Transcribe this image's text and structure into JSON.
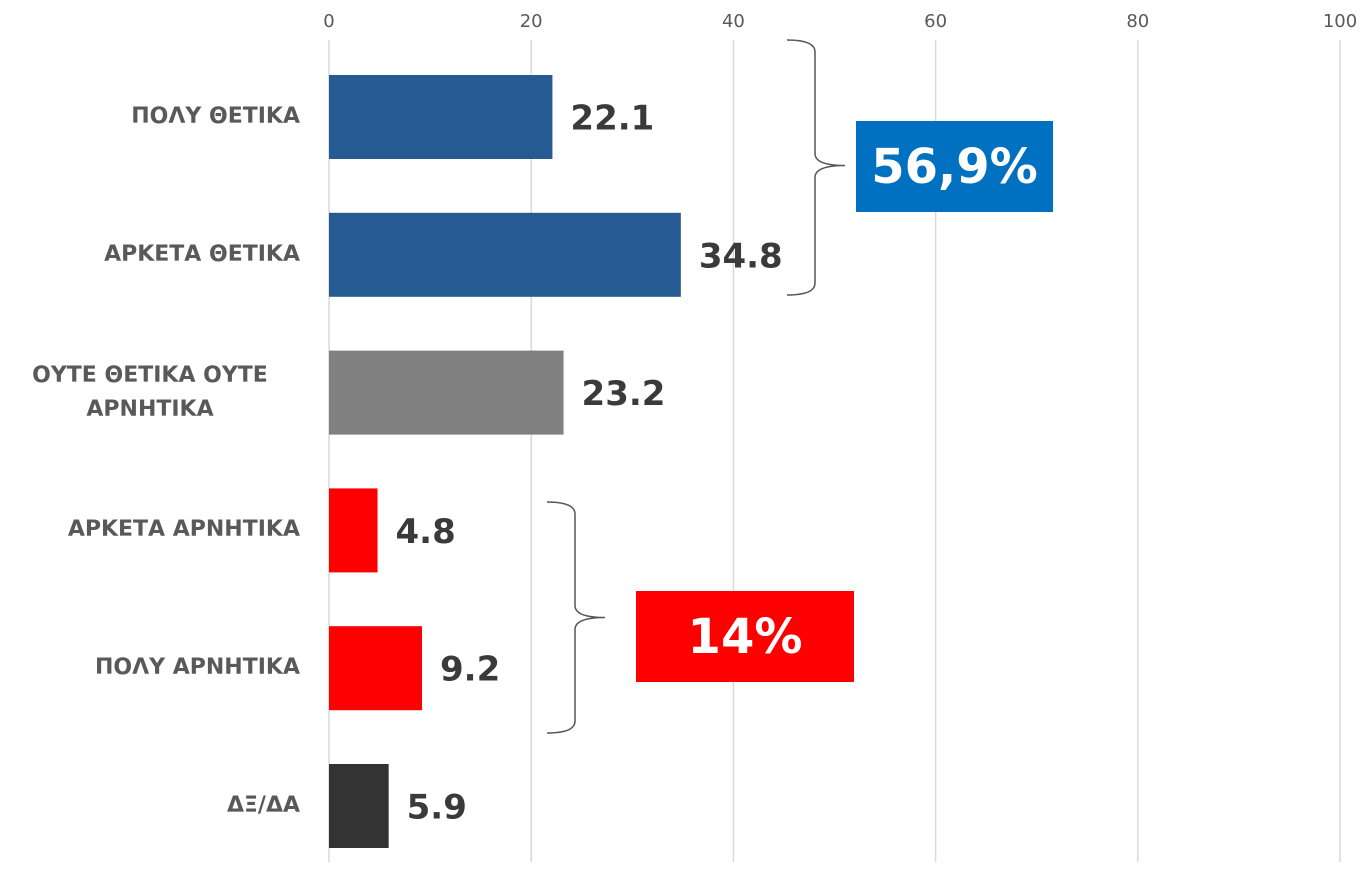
{
  "chart_data": {
    "type": "barh",
    "categories": [
      "ΠΟΛΥ ΘΕΤΙΚΑ",
      "ΑΡΚΕΤΑ ΘΕΤΙΚΑ",
      "ΟΥΤΕ ΘΕΤΙΚΑ ΟΥΤΕ ΑΡΝΗΤΙΚΑ",
      "ΑΡΚΕΤΑ ΑΡΝΗΤΙΚΑ",
      "ΠΟΛΥ ΑΡΝΗΤΙΚΑ",
      "ΔΞ/ΔΑ"
    ],
    "values": [
      22.1,
      34.8,
      23.2,
      4.8,
      9.2,
      5.9
    ],
    "colors": [
      "#265a92",
      "#265a92",
      "#808080",
      "#ff0000",
      "#ff0000",
      "#333333"
    ],
    "xlim": [
      0,
      100
    ],
    "xticks": [
      0,
      20,
      40,
      60,
      80,
      100
    ],
    "grid": true,
    "annotations": [
      {
        "text": "56,9%",
        "color": "#0070c0"
      },
      {
        "text": "14%",
        "color": "#ff0000"
      }
    ]
  }
}
